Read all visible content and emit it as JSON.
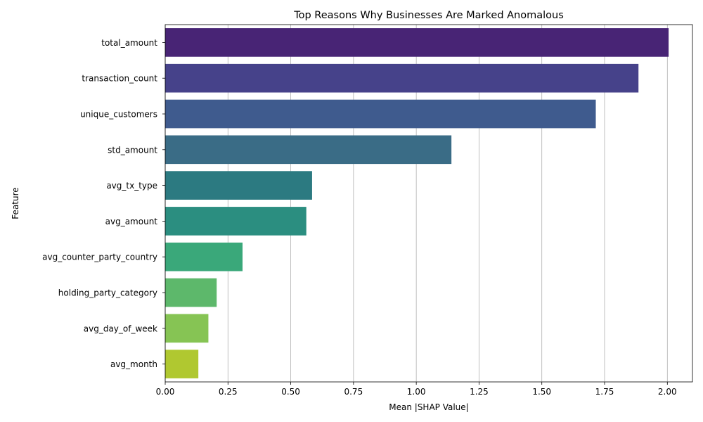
{
  "chart_data": {
    "type": "bar",
    "orientation": "horizontal",
    "title": "Top Reasons Why Businesses Are Marked Anomalous",
    "xlabel": "Mean |SHAP Value|",
    "ylabel": "Feature",
    "xlim": [
      0,
      2.1
    ],
    "xticks": [
      "0.00",
      "0.25",
      "0.50",
      "0.75",
      "1.00",
      "1.25",
      "1.50",
      "1.75",
      "2.00"
    ],
    "grid": "x",
    "categories": [
      "total_amount",
      "transaction_count",
      "unique_customers",
      "std_amount",
      "avg_tx_type",
      "avg_amount",
      "avg_counter_party_country",
      "holding_party_category",
      "avg_day_of_week",
      "avg_month"
    ],
    "values": [
      2.005,
      1.885,
      1.715,
      1.14,
      0.585,
      0.562,
      0.308,
      0.205,
      0.172,
      0.132
    ],
    "colors": [
      "#482475",
      "#46428a",
      "#3f5b8e",
      "#3a6c86",
      "#2c7a81",
      "#2b8e80",
      "#3aa87a",
      "#5db86b",
      "#86c454",
      "#b0c830"
    ]
  }
}
